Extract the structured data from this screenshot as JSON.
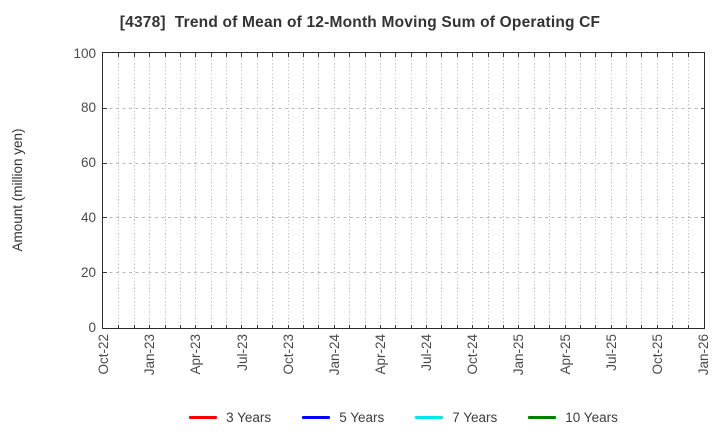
{
  "figure": {
    "title": "[4378]  Trend of Mean of 12-Month Moving Sum of Operating CF",
    "background_color": "#ffffff",
    "axis_color": "#2b2b2b",
    "tick_label_color": "#4a4a4a"
  },
  "chart_data": {
    "type": "line",
    "title": "[4378]  Trend of Mean of 12-Month Moving Sum of Operating CF",
    "xlabel": "",
    "ylabel": "Amount (million yen)",
    "ylim": [
      0,
      100
    ],
    "yticks": [
      0,
      20,
      40,
      60,
      80,
      100
    ],
    "x_tick_labels": [
      "Oct-22",
      "Jan-23",
      "Apr-23",
      "Jul-23",
      "Oct-23",
      "Jan-24",
      "Apr-24",
      "Jul-24",
      "Oct-24",
      "Jan-25",
      "Apr-25",
      "Jul-25",
      "Oct-25",
      "Jan-26"
    ],
    "x_tick_interval_months": 3,
    "x_total_month_intervals": 39,
    "grid": true,
    "grid_style": {
      "vertical": "dotted monthly",
      "horizontal": "dashed every 20 units"
    },
    "legend_position": "bottom-center",
    "plot_area_empty": true,
    "series": [
      {
        "name": "3 Years",
        "color": "#ff0000",
        "x": [],
        "values": []
      },
      {
        "name": "5 Years",
        "color": "#0000ff",
        "x": [],
        "values": []
      },
      {
        "name": "7 Years",
        "color": "#00e8e8",
        "x": [],
        "values": []
      },
      {
        "name": "10 Years",
        "color": "#008000",
        "x": [],
        "values": []
      }
    ]
  },
  "legend": {
    "items": [
      {
        "label": "3 Years",
        "color": "#ff0000"
      },
      {
        "label": "5 Years",
        "color": "#0000ff"
      },
      {
        "label": "7 Years",
        "color": "#00e8e8"
      },
      {
        "label": "10 Years",
        "color": "#008000"
      }
    ]
  }
}
